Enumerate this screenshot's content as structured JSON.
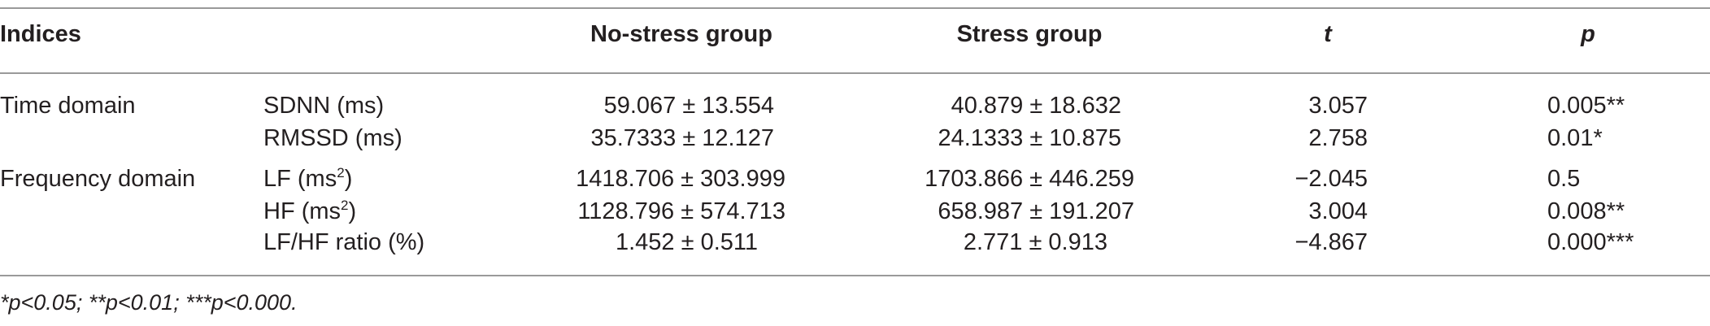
{
  "table": {
    "header": {
      "indices": "Indices",
      "no_stress": "No-stress group",
      "stress": "Stress group",
      "t": "t",
      "p": "p"
    },
    "rows": [
      {
        "domain": "Time domain",
        "index": "SDNN (ms)",
        "index_sup": "",
        "index_tail": "",
        "no_stress": "59.067 ± 13.554",
        "stress": "40.879 ± 18.632",
        "t": "3.057",
        "p": "0.005**"
      },
      {
        "domain": "",
        "index": "RMSSD (ms)",
        "index_sup": "",
        "index_tail": "",
        "no_stress": "35.7333 ± 12.127",
        "stress": "24.1333 ± 10.875",
        "t": "2.758",
        "p": "0.01*"
      },
      {
        "domain": "Frequency domain",
        "index": "LF (ms",
        "index_sup": "2",
        "index_tail": ")",
        "no_stress": "1418.706 ± 303.999",
        "stress": "1703.866 ± 446.259",
        "t": "−2.045",
        "p": "0.5"
      },
      {
        "domain": "",
        "index": "HF (ms",
        "index_sup": "2",
        "index_tail": ")",
        "no_stress": "1128.796 ± 574.713",
        "stress": "658.987 ± 191.207",
        "t": "3.004",
        "p": "0.008**"
      },
      {
        "domain": "",
        "index": "LF/HF ratio (%)",
        "index_sup": "",
        "index_tail": "",
        "no_stress": "1.452 ± 0.511",
        "stress": "2.771 ± 0.913",
        "t": "−4.867",
        "p": "0.000***"
      }
    ]
  },
  "footnote": "*p<0.05;  **p<0.01;  ***p<0.000."
}
